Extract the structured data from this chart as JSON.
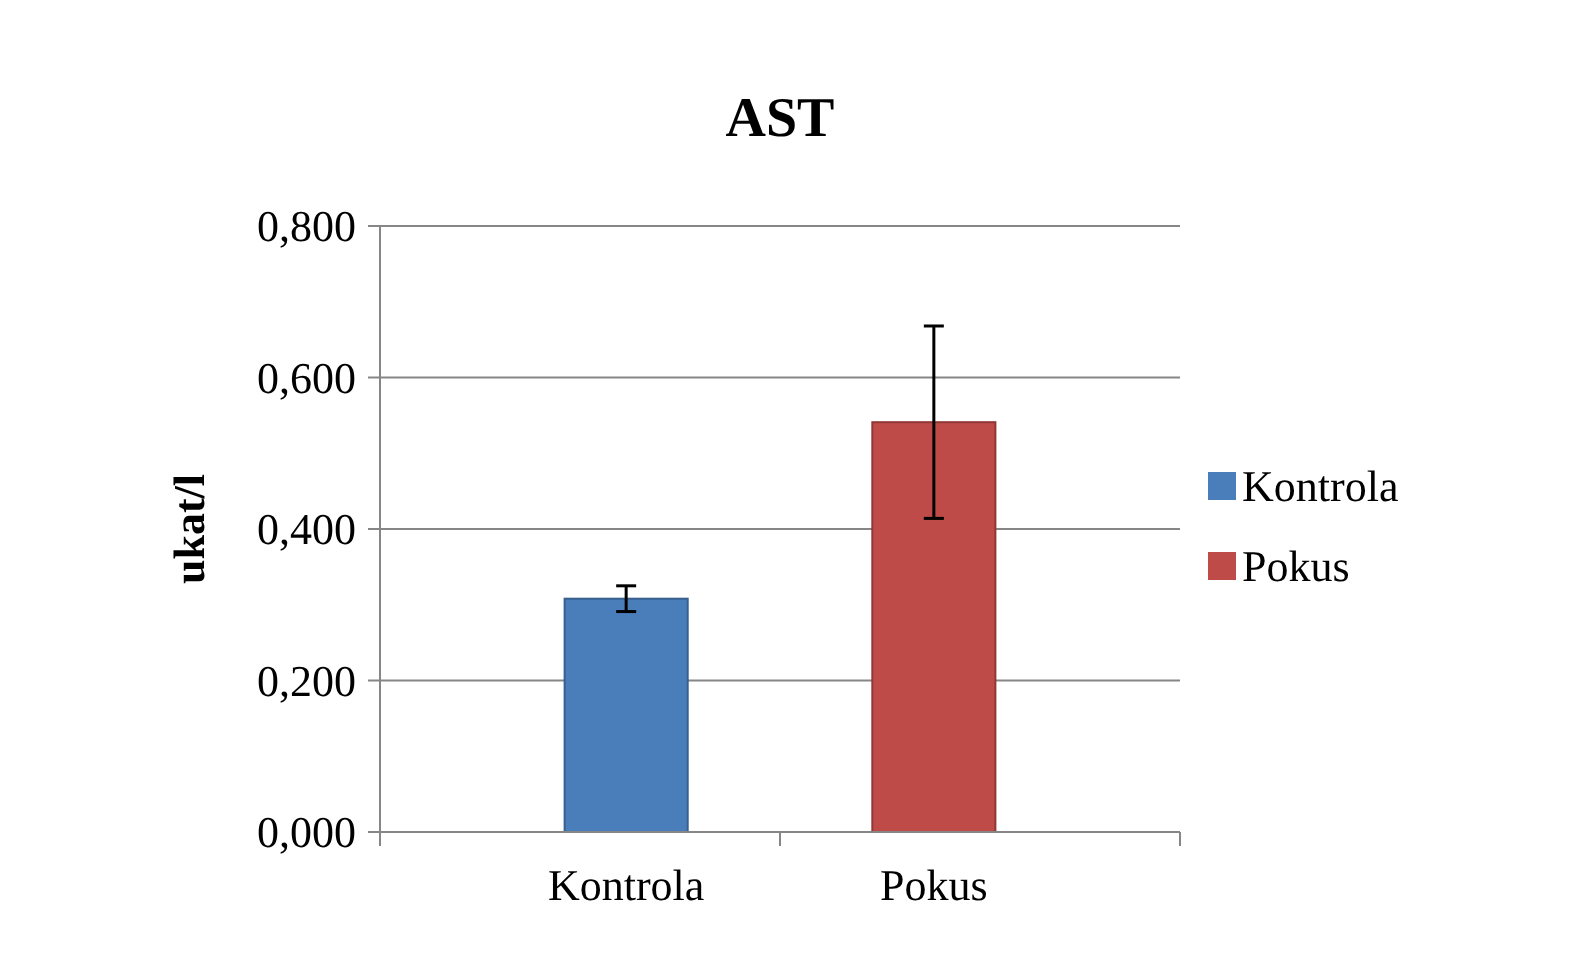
{
  "chart_data": {
    "type": "bar",
    "title": "AST",
    "ylabel": "ukat/l",
    "categories": [
      "Kontrola",
      "Pokus"
    ],
    "series": [
      {
        "name": "Kontrola",
        "color": "#4a7ebb",
        "values": [
          0.308,
          null
        ],
        "errors": [
          0.017,
          null
        ]
      },
      {
        "name": "Pokus",
        "color": "#be4b48",
        "values": [
          null,
          0.541
        ],
        "errors": [
          null,
          0.127
        ]
      }
    ],
    "ylim": [
      0,
      0.8
    ],
    "yticks": [
      {
        "value": 0,
        "label": "0,000"
      },
      {
        "value": 0.2,
        "label": "0,200"
      },
      {
        "value": 0.4,
        "label": "0,400"
      },
      {
        "value": 0.6,
        "label": "0,600"
      },
      {
        "value": 0.8,
        "label": "0,800"
      }
    ],
    "grid": "y",
    "legend": "right"
  }
}
